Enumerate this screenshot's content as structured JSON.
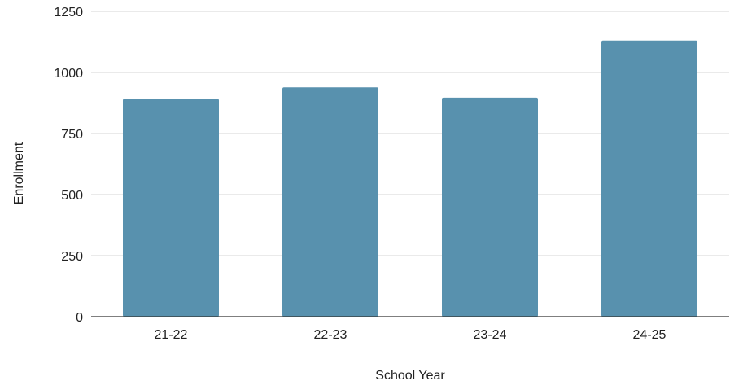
{
  "chart_data": {
    "type": "bar",
    "title": "",
    "xlabel": "School Year",
    "ylabel": "Enrollment",
    "categories": [
      "21-22",
      "22-23",
      "23-24",
      "24-25"
    ],
    "values": [
      892,
      939,
      897,
      1131
    ],
    "ylim": [
      0,
      1250
    ],
    "yticks": [
      0,
      250,
      500,
      750,
      1000,
      1250
    ],
    "grid": true,
    "legend": "none",
    "colors": {
      "bar": "#5891ae",
      "grid": "#d6d6d6",
      "axis": "#333333"
    }
  }
}
